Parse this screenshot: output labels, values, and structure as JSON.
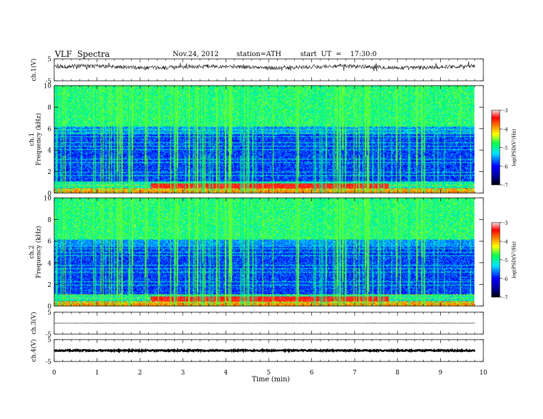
{
  "header": {
    "title": "VLF  Spectra",
    "date": "Nov.24, 2012",
    "station": "station=ATH",
    "start": "start  UT  =    17:30:0"
  },
  "chart_data": [
    {
      "type": "line",
      "ylabel": "ch.1(V)",
      "ylim": [
        -5,
        5
      ],
      "yticks": [
        "5",
        "-5"
      ],
      "xlim": [
        0,
        10
      ],
      "baseline": 1.3,
      "noise": 0.9
    },
    {
      "type": "heatmap",
      "ylabel_top": "ch.1",
      "ylabel": "Frequency  (kHz)",
      "ylim": [
        0,
        10
      ],
      "yticks": [
        "0",
        "2",
        "4",
        "6",
        "8",
        "10"
      ],
      "xlim": [
        0,
        9.8
      ],
      "colorbar": {
        "label": "log(PSD(V²/Hz)",
        "ticks": [
          "-3",
          "-4",
          "-5",
          "-6",
          "-7"
        ],
        "range": [
          -7,
          -3
        ]
      }
    },
    {
      "type": "heatmap",
      "ylabel_top": "ch.2",
      "ylabel": "Frequency  (kHz)",
      "ylim": [
        0,
        10
      ],
      "yticks": [
        "0",
        "2",
        "4",
        "6",
        "8",
        "10"
      ],
      "xlim": [
        0,
        9.8
      ],
      "colorbar": {
        "label": "log(PSD(V²/Hz)",
        "ticks": [
          "-3",
          "-4",
          "-5",
          "-6",
          "-7"
        ],
        "range": [
          -7,
          -3
        ]
      }
    },
    {
      "type": "line",
      "ylabel": "ch.3(V)",
      "ylim": [
        -5,
        5
      ],
      "yticks": [
        "5",
        "-5"
      ],
      "xlim": [
        0,
        10
      ],
      "baseline": 0,
      "noise": 0.05
    },
    {
      "type": "line",
      "ylabel": "ch.4(V)",
      "ylim": [
        -5,
        5
      ],
      "yticks": [
        "5",
        "-5"
      ],
      "xlim": [
        0,
        10
      ],
      "baseline": 0,
      "noise": 0.3
    }
  ],
  "xaxis": {
    "label": "Time  (min)",
    "ticks": [
      "0",
      "1",
      "2",
      "3",
      "4",
      "5",
      "6",
      "7",
      "8",
      "9",
      "10"
    ]
  }
}
